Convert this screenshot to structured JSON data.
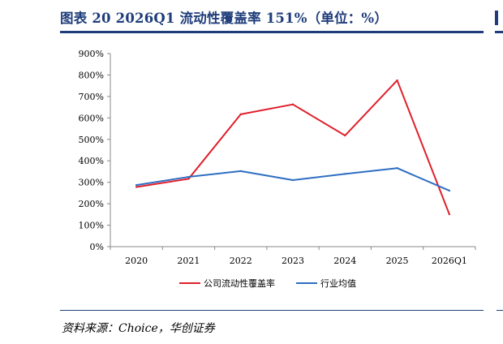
{
  "figure": {
    "title": "图表 20   2026Q1 流动性覆盖率 151%（单位：%）",
    "source": "资料来源：Choice，华创证券"
  },
  "colors": {
    "frame": "#1f3d7a",
    "series_lcr": "#e0202c",
    "series_avg": "#2e6ec2",
    "axis": "#888888"
  },
  "chart_data": {
    "type": "line",
    "title": "2026Q1 流动性覆盖率 151%（单位：%）",
    "xlabel": "",
    "ylabel": "",
    "categories": [
      "2020",
      "2021",
      "2022",
      "2023",
      "2024",
      "2025",
      "2026Q1"
    ],
    "ylim": [
      0,
      900
    ],
    "ytick_step": 100,
    "ytick_suffix": "%",
    "grid": false,
    "legend_position": "bottom",
    "series": [
      {
        "name": "公司流动性覆盖率",
        "color": "#e0202c",
        "values": [
          278,
          316,
          617,
          663,
          518,
          775,
          151
        ]
      },
      {
        "name": "行业均值",
        "color": "#2e6ec2",
        "values": [
          287,
          325,
          352,
          310,
          339,
          366,
          261
        ]
      }
    ]
  }
}
